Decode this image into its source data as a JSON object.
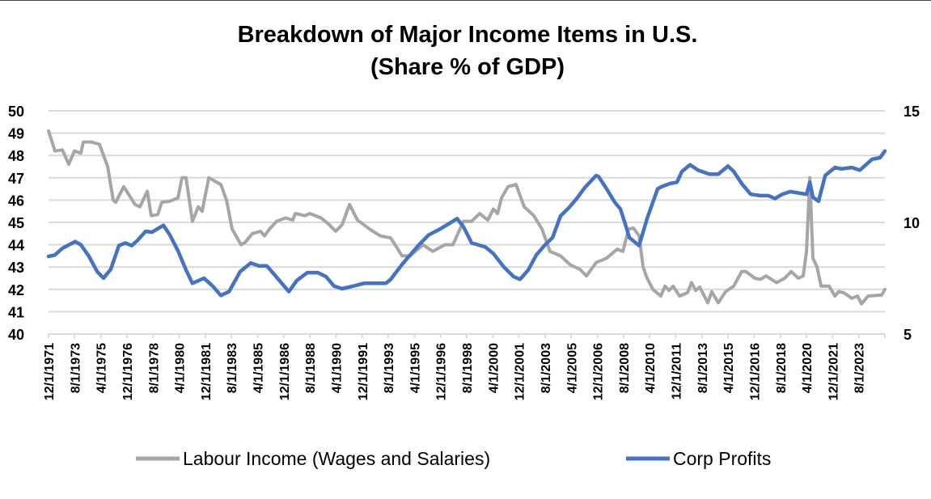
{
  "chart_data": {
    "type": "line",
    "title": [
      "Breakdown of Major Income Items in U.S.",
      "(Share % of GDP)"
    ],
    "xlabel": "",
    "ylabel_left": "",
    "ylabel_right": "",
    "x_unit": "year (fractional)",
    "xlim": [
      1971.92,
      2025.27
    ],
    "ylim_left": [
      40,
      50
    ],
    "ylim_right": [
      5,
      15
    ],
    "yticks_left": [
      "40",
      "41",
      "42",
      "43",
      "44",
      "45",
      "46",
      "47",
      "48",
      "49",
      "50"
    ],
    "yticks_right": [
      "5",
      "10",
      "15"
    ],
    "xtick_labels": [
      "12/1/1971",
      "8/1/1973",
      "4/1/1975",
      "12/1/1976",
      "8/1/1978",
      "4/1/1980",
      "12/1/1981",
      "8/1/1983",
      "4/1/1985",
      "12/1/1986",
      "8/1/1988",
      "4/1/1990",
      "12/1/1991",
      "8/1/1993",
      "4/1/1995",
      "12/1/1996",
      "8/1/1998",
      "4/1/2000",
      "12/1/2001",
      "8/1/2003",
      "4/1/2005",
      "12/1/2006",
      "8/1/2008",
      "4/1/2010",
      "12/1/2011",
      "8/1/2013",
      "4/1/2015",
      "12/1/2016",
      "8/1/2018",
      "4/1/2020",
      "12/1/2021",
      "8/1/2023"
    ],
    "grid": true,
    "legend_position": "bottom",
    "series": [
      {
        "name": "Labour Income (Wages and Salaries)",
        "axis": "left",
        "color": "#a6a6a6",
        "points": [
          [
            1971.92,
            49.1
          ],
          [
            1972.33,
            48.2
          ],
          [
            1972.8,
            48.25
          ],
          [
            1973.21,
            47.6
          ],
          [
            1973.57,
            48.2
          ],
          [
            1973.98,
            48.1
          ],
          [
            1974.14,
            48.6
          ],
          [
            1974.65,
            48.6
          ],
          [
            1975.17,
            48.5
          ],
          [
            1975.69,
            47.5
          ],
          [
            1976.05,
            46.0
          ],
          [
            1976.2,
            45.9
          ],
          [
            1976.72,
            46.6
          ],
          [
            1977.44,
            45.8
          ],
          [
            1977.75,
            45.7
          ],
          [
            1978.22,
            46.4
          ],
          [
            1978.47,
            45.3
          ],
          [
            1978.89,
            45.35
          ],
          [
            1979.14,
            45.9
          ],
          [
            1979.66,
            45.95
          ],
          [
            1980.18,
            46.1
          ],
          [
            1980.43,
            47.0
          ],
          [
            1980.69,
            47.0
          ],
          [
            1981.1,
            45.05
          ],
          [
            1981.47,
            45.7
          ],
          [
            1981.72,
            45.5
          ],
          [
            1982.14,
            47.0
          ],
          [
            1982.91,
            46.7
          ],
          [
            1983.27,
            46.0
          ],
          [
            1983.63,
            44.7
          ],
          [
            1984.2,
            44.0
          ],
          [
            1984.46,
            44.1
          ],
          [
            1984.92,
            44.5
          ],
          [
            1985.44,
            44.6
          ],
          [
            1985.7,
            44.4
          ],
          [
            1986.01,
            44.7
          ],
          [
            1986.47,
            45.05
          ],
          [
            1987.04,
            45.2
          ],
          [
            1987.5,
            45.1
          ],
          [
            1987.66,
            45.4
          ],
          [
            1988.28,
            45.3
          ],
          [
            1988.59,
            45.4
          ],
          [
            1989.31,
            45.2
          ],
          [
            1989.83,
            44.9
          ],
          [
            1990.24,
            44.6
          ],
          [
            1990.65,
            44.9
          ],
          [
            1991.12,
            45.8
          ],
          [
            1991.63,
            45.1
          ],
          [
            1992.41,
            44.7
          ],
          [
            1993.08,
            44.4
          ],
          [
            1993.75,
            44.3
          ],
          [
            1994.47,
            43.5
          ],
          [
            1994.99,
            43.5
          ],
          [
            1995.81,
            44.0
          ],
          [
            1996.43,
            43.7
          ],
          [
            1997.2,
            44.0
          ],
          [
            1997.72,
            44.0
          ],
          [
            1998.39,
            45.05
          ],
          [
            1998.91,
            45.05
          ],
          [
            1999.42,
            45.4
          ],
          [
            1999.94,
            45.1
          ],
          [
            2000.3,
            45.6
          ],
          [
            2000.56,
            45.4
          ],
          [
            2000.82,
            46.1
          ],
          [
            2001.23,
            46.6
          ],
          [
            2001.74,
            46.7
          ],
          [
            2002.26,
            45.7
          ],
          [
            2002.88,
            45.3
          ],
          [
            2003.4,
            44.7
          ],
          [
            2003.91,
            43.7
          ],
          [
            2004.58,
            43.5
          ],
          [
            2005.2,
            43.1
          ],
          [
            2005.82,
            42.9
          ],
          [
            2006.23,
            42.6
          ],
          [
            2006.85,
            43.2
          ],
          [
            2007.52,
            43.4
          ],
          [
            2008.19,
            43.8
          ],
          [
            2008.56,
            43.7
          ],
          [
            2008.92,
            44.7
          ],
          [
            2009.23,
            44.75
          ],
          [
            2009.59,
            44.4
          ],
          [
            2009.85,
            43.0
          ],
          [
            2010.1,
            42.5
          ],
          [
            2010.47,
            42.0
          ],
          [
            2010.98,
            41.7
          ],
          [
            2011.24,
            42.15
          ],
          [
            2011.5,
            41.95
          ],
          [
            2011.76,
            42.15
          ],
          [
            2012.17,
            41.7
          ],
          [
            2012.68,
            41.85
          ],
          [
            2012.94,
            42.3
          ],
          [
            2013.2,
            41.95
          ],
          [
            2013.46,
            42.1
          ],
          [
            2013.97,
            41.4
          ],
          [
            2014.23,
            41.9
          ],
          [
            2014.64,
            41.4
          ],
          [
            2015.11,
            41.9
          ],
          [
            2015.63,
            42.15
          ],
          [
            2016.14,
            42.8
          ],
          [
            2016.4,
            42.8
          ],
          [
            2016.97,
            42.5
          ],
          [
            2017.33,
            42.45
          ],
          [
            2017.69,
            42.6
          ],
          [
            2018.36,
            42.3
          ],
          [
            2018.88,
            42.5
          ],
          [
            2019.29,
            42.8
          ],
          [
            2019.75,
            42.5
          ],
          [
            2020.06,
            42.6
          ],
          [
            2020.27,
            43.7
          ],
          [
            2020.48,
            47.0
          ],
          [
            2020.68,
            43.4
          ],
          [
            2020.94,
            43.0
          ],
          [
            2021.2,
            42.15
          ],
          [
            2021.71,
            42.15
          ],
          [
            2022.08,
            41.7
          ],
          [
            2022.33,
            41.9
          ],
          [
            2022.64,
            41.85
          ],
          [
            2023.16,
            41.6
          ],
          [
            2023.52,
            41.7
          ],
          [
            2023.78,
            41.35
          ],
          [
            2024.19,
            41.7
          ],
          [
            2025.07,
            41.75
          ],
          [
            2025.27,
            42.0
          ]
        ]
      },
      {
        "name": "Corp Profits",
        "axis": "right",
        "color": "#4472c4",
        "points": [
          [
            1971.92,
            8.48
          ],
          [
            1972.33,
            8.54
          ],
          [
            1972.8,
            8.84
          ],
          [
            1973.62,
            9.14
          ],
          [
            1973.98,
            9.0
          ],
          [
            1974.5,
            8.48
          ],
          [
            1975.02,
            7.8
          ],
          [
            1975.43,
            7.5
          ],
          [
            1975.89,
            7.9
          ],
          [
            1976.41,
            8.96
          ],
          [
            1976.82,
            9.08
          ],
          [
            1977.23,
            8.96
          ],
          [
            1977.6,
            9.2
          ],
          [
            1978.11,
            9.6
          ],
          [
            1978.52,
            9.56
          ],
          [
            1979.25,
            9.87
          ],
          [
            1979.66,
            9.44
          ],
          [
            1980.18,
            8.72
          ],
          [
            1980.69,
            7.87
          ],
          [
            1981.1,
            7.27
          ],
          [
            1981.83,
            7.5
          ],
          [
            1982.39,
            7.15
          ],
          [
            1982.91,
            6.73
          ],
          [
            1983.43,
            6.9
          ],
          [
            1984.15,
            7.8
          ],
          [
            1984.82,
            8.18
          ],
          [
            1985.34,
            8.05
          ],
          [
            1985.85,
            8.05
          ],
          [
            1986.52,
            7.5
          ],
          [
            1987.25,
            6.9
          ],
          [
            1987.76,
            7.4
          ],
          [
            1988.43,
            7.75
          ],
          [
            1989.1,
            7.75
          ],
          [
            1989.62,
            7.57
          ],
          [
            1990.13,
            7.15
          ],
          [
            1990.65,
            7.03
          ],
          [
            1991.37,
            7.15
          ],
          [
            1992.04,
            7.27
          ],
          [
            1993.44,
            7.27
          ],
          [
            1993.75,
            7.45
          ],
          [
            1994.47,
            8.12
          ],
          [
            1994.99,
            8.54
          ],
          [
            1995.5,
            8.96
          ],
          [
            1996.17,
            9.44
          ],
          [
            1996.84,
            9.68
          ],
          [
            1997.57,
            9.99
          ],
          [
            1997.98,
            10.17
          ],
          [
            1998.39,
            9.8
          ],
          [
            1998.91,
            9.08
          ],
          [
            1999.78,
            8.9
          ],
          [
            2000.3,
            8.6
          ],
          [
            2000.97,
            8.0
          ],
          [
            2001.59,
            7.57
          ],
          [
            2002.0,
            7.45
          ],
          [
            2002.52,
            7.87
          ],
          [
            2003.03,
            8.54
          ],
          [
            2003.55,
            8.96
          ],
          [
            2004.07,
            9.32
          ],
          [
            2004.58,
            10.29
          ],
          [
            2005.1,
            10.65
          ],
          [
            2005.61,
            11.07
          ],
          [
            2006.13,
            11.56
          ],
          [
            2006.85,
            12.1
          ],
          [
            2007.01,
            12.05
          ],
          [
            2007.52,
            11.5
          ],
          [
            2008.04,
            10.9
          ],
          [
            2008.4,
            10.6
          ],
          [
            2008.71,
            9.93
          ],
          [
            2008.97,
            9.32
          ],
          [
            2009.59,
            8.96
          ],
          [
            2010.1,
            10.17
          ],
          [
            2010.77,
            11.5
          ],
          [
            2011.03,
            11.6
          ],
          [
            2011.55,
            11.74
          ],
          [
            2012.01,
            11.8
          ],
          [
            2012.32,
            12.28
          ],
          [
            2012.84,
            12.58
          ],
          [
            2013.35,
            12.34
          ],
          [
            2014.08,
            12.16
          ],
          [
            2014.64,
            12.16
          ],
          [
            2015.26,
            12.52
          ],
          [
            2015.63,
            12.28
          ],
          [
            2016.14,
            11.74
          ],
          [
            2016.71,
            11.26
          ],
          [
            2017.33,
            11.2
          ],
          [
            2017.84,
            11.2
          ],
          [
            2018.26,
            11.07
          ],
          [
            2018.72,
            11.26
          ],
          [
            2019.24,
            11.38
          ],
          [
            2019.75,
            11.32
          ],
          [
            2020.27,
            11.26
          ],
          [
            2020.48,
            11.8
          ],
          [
            2020.68,
            11.13
          ],
          [
            2021.04,
            10.95
          ],
          [
            2021.46,
            12.1
          ],
          [
            2022.08,
            12.46
          ],
          [
            2022.49,
            12.4
          ],
          [
            2023.16,
            12.46
          ],
          [
            2023.67,
            12.34
          ],
          [
            2024.45,
            12.83
          ],
          [
            2024.96,
            12.9
          ],
          [
            2025.27,
            13.2
          ]
        ]
      }
    ]
  }
}
